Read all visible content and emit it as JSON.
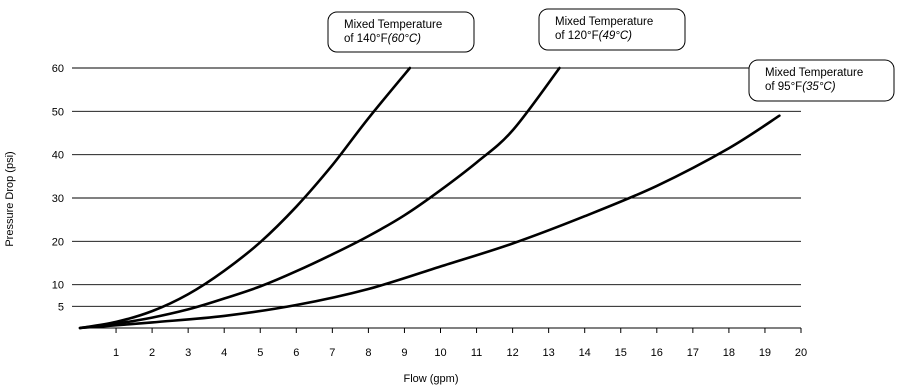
{
  "chart_data": {
    "type": "line",
    "xlabel": "Flow (gpm)",
    "ylabel": "Pressure Drop (psi)",
    "xlim": [
      0,
      20
    ],
    "ylim": [
      0,
      60
    ],
    "x_ticks": [
      "1",
      "2",
      "3",
      "4",
      "5",
      "6",
      "7",
      "8",
      "9",
      "10",
      "11",
      "12",
      "13",
      "14",
      "15",
      "16",
      "17",
      "18",
      "19",
      "20"
    ],
    "y_ticks": [
      {
        "value": 5,
        "label": "5"
      },
      {
        "value": 10,
        "label": "10"
      },
      {
        "value": 20,
        "label": "20"
      },
      {
        "value": 30,
        "label": "30"
      },
      {
        "value": 40,
        "label": "40"
      },
      {
        "value": 50,
        "label": "50"
      },
      {
        "value": 60,
        "label": "60"
      }
    ],
    "grid": true,
    "series": [
      {
        "name_main": "Mixed Temperature",
        "name_sub": "of 140°F",
        "name_metric": "(60°C)",
        "x": [
          0,
          1,
          2,
          3,
          4,
          5,
          6,
          7,
          8,
          9.15
        ],
        "y": [
          0,
          1.4,
          3.9,
          7.8,
          13.2,
          19.8,
          28,
          37.6,
          48.4,
          60
        ]
      },
      {
        "name_main": "Mixed Temperature",
        "name_sub": "of 120°F",
        "name_metric": "(49°C)",
        "x": [
          0,
          1,
          2,
          3,
          4,
          5,
          6,
          7,
          8,
          9,
          10,
          11,
          12,
          13.3
        ],
        "y": [
          0,
          1,
          2.4,
          4.3,
          6.8,
          9.6,
          13.1,
          17,
          21.2,
          26,
          31.8,
          38.2,
          45.6,
          60
        ]
      },
      {
        "name_main": "Mixed Temperature",
        "name_sub": "of 95°F",
        "name_metric": "(35°C)",
        "x": [
          0,
          2,
          4,
          6,
          8,
          10,
          12,
          14,
          16,
          18,
          19.4
        ],
        "y": [
          0,
          1.3,
          2.8,
          5.3,
          9,
          14.2,
          19.5,
          25.8,
          32.8,
          41.5,
          49
        ]
      }
    ]
  }
}
